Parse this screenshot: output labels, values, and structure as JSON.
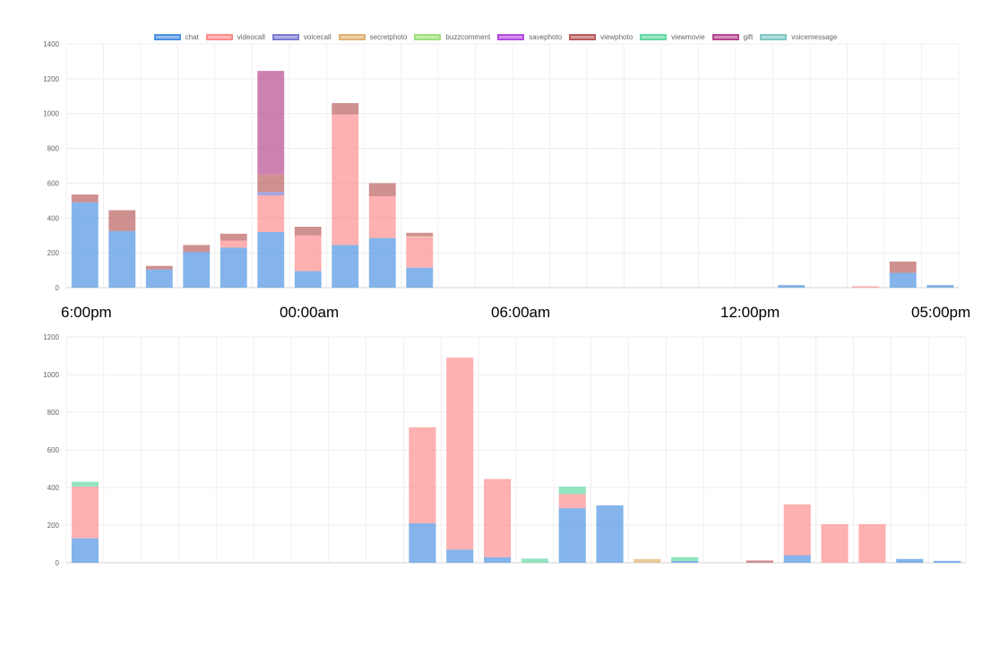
{
  "legend": [
    {
      "label": "chat",
      "color": "#4a90e2"
    },
    {
      "label": "videocall",
      "color": "#ff8a8a"
    },
    {
      "label": "voicecall",
      "color": "#7b7bd1"
    },
    {
      "label": "secretphoto",
      "color": "#e0b070"
    },
    {
      "label": "buzzcomment",
      "color": "#9de07a"
    },
    {
      "label": "savephoto",
      "color": "#b44be1"
    },
    {
      "label": "viewphoto",
      "color": "#b85c5c"
    },
    {
      "label": "viewmovie",
      "color": "#5fd9a0"
    },
    {
      "label": "gift",
      "color": "#b5468c"
    },
    {
      "label": "voicemessage",
      "color": "#7fc7c7"
    }
  ],
  "time_labels": [
    "6:00pm",
    "00:00am",
    "06:00am",
    "12:00pm",
    "05:00pm"
  ],
  "chart_data": [
    {
      "type": "bar",
      "stacked": true,
      "ylim": [
        0,
        1400
      ],
      "yticks": [
        0,
        200,
        400,
        600,
        800,
        1000,
        1200,
        1400
      ],
      "ytick_labels": [
        "0",
        "200",
        "400",
        "600",
        "800",
        "1000",
        "1200",
        "1400"
      ],
      "grid": true,
      "legend_position": "top",
      "num_bars": 24,
      "series": [
        {
          "name": "chat",
          "color": "#4a90e2",
          "values": [
            490,
            325,
            105,
            205,
            230,
            320,
            95,
            245,
            285,
            115,
            0,
            0,
            0,
            0,
            0,
            0,
            0,
            0,
            0,
            15,
            0,
            0,
            85,
            15
          ]
        },
        {
          "name": "videocall",
          "color": "#ff8a8a",
          "values": [
            0,
            0,
            0,
            0,
            40,
            210,
            205,
            750,
            240,
            175,
            0,
            0,
            0,
            0,
            0,
            0,
            0,
            0,
            0,
            0,
            0,
            8,
            0,
            0
          ]
        },
        {
          "name": "voicecall",
          "color": "#7b7bd1",
          "values": [
            0,
            0,
            0,
            0,
            0,
            20,
            0,
            0,
            0,
            0,
            0,
            0,
            0,
            0,
            0,
            0,
            0,
            0,
            0,
            0,
            0,
            0,
            0,
            0
          ]
        },
        {
          "name": "secretphoto",
          "color": "#e0b070",
          "values": [
            0,
            0,
            0,
            0,
            0,
            0,
            0,
            0,
            0,
            5,
            0,
            0,
            0,
            0,
            0,
            0,
            0,
            0,
            0,
            0,
            0,
            0,
            0,
            0
          ]
        },
        {
          "name": "buzzcomment",
          "color": "#9de07a",
          "values": [
            0,
            0,
            0,
            0,
            0,
            0,
            0,
            0,
            0,
            0,
            0,
            0,
            0,
            0,
            0,
            0,
            0,
            0,
            0,
            0,
            0,
            0,
            0,
            0
          ]
        },
        {
          "name": "savephoto",
          "color": "#b44be1",
          "values": [
            0,
            0,
            0,
            0,
            0,
            0,
            0,
            0,
            0,
            0,
            0,
            0,
            0,
            0,
            0,
            0,
            0,
            0,
            0,
            0,
            0,
            0,
            0,
            0
          ]
        },
        {
          "name": "viewphoto",
          "color": "#b85c5c",
          "values": [
            45,
            120,
            20,
            40,
            40,
            100,
            50,
            65,
            75,
            20,
            0,
            0,
            0,
            0,
            0,
            0,
            0,
            0,
            0,
            0,
            0,
            0,
            65,
            0
          ]
        },
        {
          "name": "viewmovie",
          "color": "#5fd9a0",
          "values": [
            0,
            0,
            0,
            0,
            0,
            0,
            0,
            0,
            0,
            0,
            0,
            0,
            0,
            0,
            0,
            0,
            0,
            0,
            0,
            0,
            0,
            0,
            0,
            0
          ]
        },
        {
          "name": "gift",
          "color": "#b5468c",
          "values": [
            0,
            0,
            0,
            0,
            0,
            595,
            0,
            0,
            0,
            0,
            0,
            0,
            0,
            0,
            0,
            0,
            0,
            0,
            0,
            0,
            0,
            0,
            0,
            0
          ]
        },
        {
          "name": "voicemessage",
          "color": "#7fc7c7",
          "values": [
            0,
            0,
            0,
            0,
            0,
            0,
            0,
            0,
            0,
            0,
            0,
            0,
            0,
            0,
            0,
            0,
            0,
            0,
            0,
            0,
            0,
            0,
            0,
            0
          ]
        }
      ]
    },
    {
      "type": "bar",
      "stacked": true,
      "ylim": [
        0,
        1200
      ],
      "yticks": [
        0,
        200,
        400,
        600,
        800,
        1000,
        1200
      ],
      "ytick_labels": [
        "0",
        "200",
        "400",
        "600",
        "800",
        "1000",
        "1200"
      ],
      "grid": true,
      "num_bars": 24,
      "series": [
        {
          "name": "chat",
          "color": "#4a90e2",
          "values": [
            130,
            0,
            0,
            0,
            0,
            0,
            0,
            0,
            0,
            210,
            70,
            30,
            0,
            290,
            305,
            0,
            10,
            0,
            0,
            40,
            0,
            0,
            20,
            10
          ]
        },
        {
          "name": "videocall",
          "color": "#ff8a8a",
          "values": [
            275,
            0,
            0,
            0,
            0,
            0,
            0,
            0,
            0,
            510,
            1020,
            415,
            0,
            75,
            0,
            0,
            0,
            0,
            0,
            270,
            205,
            205,
            0,
            0
          ]
        },
        {
          "name": "voicecall",
          "color": "#7b7bd1",
          "values": [
            0,
            0,
            0,
            0,
            0,
            0,
            0,
            0,
            0,
            0,
            0,
            0,
            0,
            0,
            0,
            0,
            0,
            0,
            0,
            0,
            0,
            0,
            0,
            0
          ]
        },
        {
          "name": "secretphoto",
          "color": "#e0b070",
          "values": [
            0,
            0,
            0,
            0,
            0,
            0,
            0,
            0,
            0,
            0,
            0,
            0,
            0,
            0,
            0,
            20,
            0,
            0,
            0,
            0,
            0,
            0,
            0,
            0
          ]
        },
        {
          "name": "buzzcomment",
          "color": "#9de07a",
          "values": [
            0,
            0,
            0,
            0,
            0,
            0,
            0,
            0,
            0,
            0,
            0,
            0,
            0,
            0,
            0,
            0,
            0,
            0,
            0,
            0,
            0,
            0,
            0,
            0
          ]
        },
        {
          "name": "savephoto",
          "color": "#b44be1",
          "values": [
            0,
            0,
            0,
            0,
            0,
            0,
            0,
            0,
            0,
            0,
            0,
            0,
            0,
            0,
            0,
            0,
            0,
            0,
            0,
            0,
            0,
            0,
            0,
            0
          ]
        },
        {
          "name": "viewphoto",
          "color": "#b85c5c",
          "values": [
            0,
            0,
            0,
            0,
            0,
            0,
            0,
            0,
            0,
            0,
            0,
            0,
            0,
            0,
            0,
            0,
            0,
            0,
            12,
            0,
            0,
            0,
            0,
            0
          ]
        },
        {
          "name": "viewmovie",
          "color": "#5fd9a0",
          "values": [
            25,
            0,
            0,
            0,
            0,
            0,
            0,
            0,
            0,
            0,
            0,
            0,
            22,
            40,
            0,
            0,
            20,
            0,
            0,
            0,
            0,
            0,
            0,
            0
          ]
        },
        {
          "name": "gift",
          "color": "#b5468c",
          "values": [
            0,
            0,
            0,
            0,
            0,
            0,
            0,
            0,
            0,
            0,
            0,
            0,
            0,
            0,
            0,
            0,
            0,
            0,
            0,
            0,
            0,
            0,
            0,
            0
          ]
        },
        {
          "name": "voicemessage",
          "color": "#7fc7c7",
          "values": [
            0,
            0,
            0,
            0,
            0,
            0,
            0,
            0,
            0,
            0,
            0,
            0,
            0,
            0,
            0,
            0,
            0,
            0,
            0,
            0,
            0,
            0,
            0,
            0
          ]
        }
      ]
    }
  ]
}
